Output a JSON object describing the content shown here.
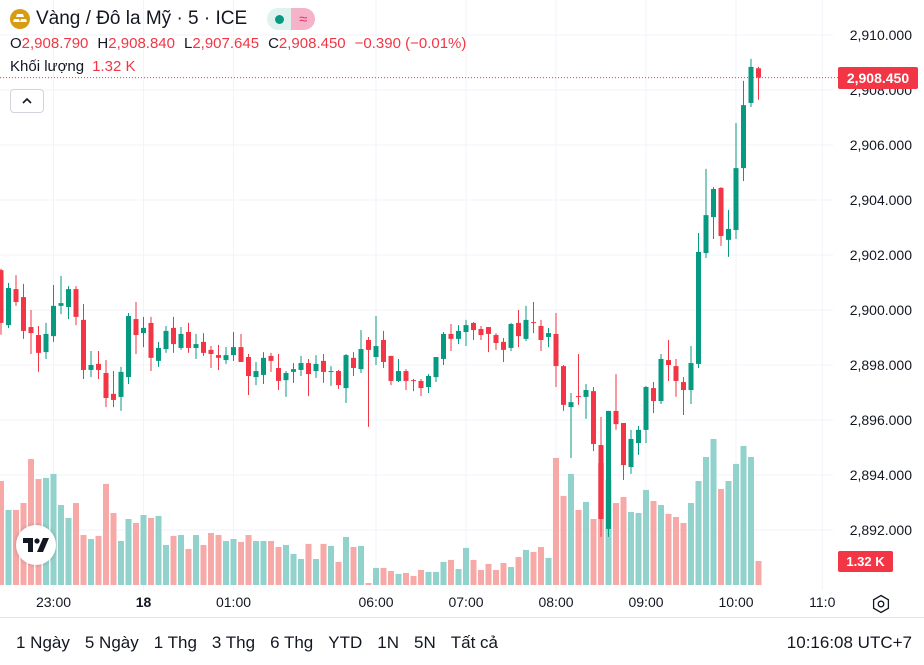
{
  "header": {
    "title": "Vàng / Đô la Mỹ · 5 · ICE",
    "market_status_icon": "green-dot-icon",
    "delayed_icon": "approx-icon",
    "delayed_glyph": "≈",
    "ohlc": {
      "o_label": "O",
      "o": "2,908.790",
      "h_label": "H",
      "h": "2,908.840",
      "l_label": "L",
      "l": "2,907.645",
      "c_label": "C",
      "c": "2,908.450",
      "change": "−0.390 (−0.01%)"
    },
    "volume_label": "Khối lượng",
    "volume_value": "1.32 K",
    "collapse_glyph": "⌃"
  },
  "price_axis": {
    "labels": [
      "2,910.000",
      "2,908.000",
      "2,906.000",
      "2,904.000",
      "2,902.000",
      "2,900.000",
      "2,898.000",
      "2,896.000",
      "2,894.000",
      "2,892.000"
    ],
    "last_price": "2,908.450",
    "last_volume": "1.32 K"
  },
  "time_axis": {
    "labels": [
      {
        "text": "23:00",
        "index": 7,
        "bold": false
      },
      {
        "text": "18",
        "index": 19,
        "bold": true
      },
      {
        "text": "01:00",
        "index": 31,
        "bold": false
      },
      {
        "text": "06:00",
        "index": 50,
        "bold": false
      },
      {
        "text": "07:00",
        "index": 62,
        "bold": false
      },
      {
        "text": "08:00",
        "index": 74,
        "bold": false
      },
      {
        "text": "09:00",
        "index": 86,
        "bold": false
      },
      {
        "text": "10:00",
        "index": 98,
        "bold": false
      },
      {
        "text": "11:0",
        "index": 109.5,
        "bold": false
      }
    ]
  },
  "footer": {
    "ranges": [
      "1 Ngày",
      "5 Ngày",
      "1 Thg",
      "3 Thg",
      "6 Thg",
      "YTD",
      "1N",
      "5N",
      "Tất cả"
    ],
    "clock": "10:16:08 UTC+7"
  },
  "colors": {
    "up": "#089981",
    "down": "#f23645",
    "vol_up": "#92d2cc",
    "vol_down": "#f7a9a7",
    "grid": "#f0f3fa"
  },
  "chart_data": {
    "type": "candlestick",
    "title": "Vàng / Đô la Mỹ · 5 · ICE",
    "interval_minutes": 5,
    "ylim": [
      2890.3,
      2911.2
    ],
    "yticks": [
      2910,
      2908,
      2906,
      2904,
      2902,
      2900,
      2898,
      2896,
      2894,
      2892
    ],
    "grid": true,
    "volume_unit": "K",
    "ohlc": [
      [
        2901.45,
        2901.5,
        2899.1,
        2899.53
      ],
      [
        2899.45,
        2900.98,
        2899.34,
        2900.8
      ],
      [
        2900.76,
        2901.27,
        2900.15,
        2900.29
      ],
      [
        2900.47,
        2900.95,
        2898.95,
        2899.24
      ],
      [
        2899.38,
        2900.0,
        2898.4,
        2899.16
      ],
      [
        2899.09,
        2899.42,
        2897.75,
        2898.44
      ],
      [
        2898.47,
        2899.53,
        2898.22,
        2899.13
      ],
      [
        2899.05,
        2900.91,
        2898.84,
        2900.15
      ],
      [
        2900.15,
        2901.24,
        2899.85,
        2900.25
      ],
      [
        2900.11,
        2900.87,
        2899.67,
        2900.76
      ],
      [
        2900.76,
        2900.87,
        2899.45,
        2899.75
      ],
      [
        2899.64,
        2900.22,
        2897.49,
        2897.82
      ],
      [
        2897.82,
        2898.51,
        2897.56,
        2898.0
      ],
      [
        2898.04,
        2898.51,
        2897.49,
        2897.82
      ],
      [
        2897.71,
        2898.18,
        2896.47,
        2896.8
      ],
      [
        2896.95,
        2897.78,
        2896.47,
        2896.73
      ],
      [
        2896.84,
        2897.93,
        2896.33,
        2897.75
      ],
      [
        2897.56,
        2899.89,
        2897.31,
        2899.78
      ],
      [
        2899.67,
        2900.29,
        2898.4,
        2899.09
      ],
      [
        2899.16,
        2899.75,
        2898.65,
        2899.35
      ],
      [
        2899.53,
        2899.75,
        2897.78,
        2898.26
      ],
      [
        2898.15,
        2898.84,
        2897.93,
        2898.62
      ],
      [
        2898.58,
        2899.42,
        2898.44,
        2899.24
      ],
      [
        2899.35,
        2899.75,
        2898.44,
        2898.76
      ],
      [
        2898.62,
        2899.38,
        2898.55,
        2899.13
      ],
      [
        2899.2,
        2899.53,
        2898.44,
        2898.62
      ],
      [
        2898.62,
        2899.13,
        2898.22,
        2898.76
      ],
      [
        2898.84,
        2899.16,
        2898.33,
        2898.44
      ],
      [
        2898.55,
        2898.69,
        2897.89,
        2898.4
      ],
      [
        2898.36,
        2898.73,
        2897.82,
        2898.26
      ],
      [
        2898.18,
        2898.65,
        2898.04,
        2898.36
      ],
      [
        2898.36,
        2899.2,
        2898.15,
        2898.65
      ],
      [
        2898.65,
        2899.13,
        2898.11,
        2898.11
      ],
      [
        2898.29,
        2898.4,
        2896.91,
        2897.6
      ],
      [
        2897.56,
        2898.11,
        2897.27,
        2897.78
      ],
      [
        2897.64,
        2898.47,
        2897.31,
        2898.26
      ],
      [
        2898.33,
        2898.44,
        2897.75,
        2898.15
      ],
      [
        2897.89,
        2898.4,
        2897.09,
        2897.42
      ],
      [
        2897.45,
        2897.78,
        2896.84,
        2897.71
      ],
      [
        2897.75,
        2898.07,
        2897.35,
        2897.85
      ],
      [
        2897.82,
        2898.33,
        2897.6,
        2898.07
      ],
      [
        2898.07,
        2898.22,
        2896.87,
        2897.67
      ],
      [
        2897.78,
        2898.36,
        2897.53,
        2898.04
      ],
      [
        2898.15,
        2898.4,
        2897.35,
        2897.75
      ],
      [
        2897.75,
        2897.96,
        2897.24,
        2897.78
      ],
      [
        2897.78,
        2897.82,
        2897.13,
        2897.27
      ],
      [
        2897.16,
        2898.4,
        2896.62,
        2898.36
      ],
      [
        2898.26,
        2898.47,
        2897.6,
        2897.89
      ],
      [
        2897.85,
        2899.27,
        2897.71,
        2898.58
      ],
      [
        2898.91,
        2899.02,
        2895.75,
        2898.55
      ],
      [
        2898.29,
        2899.78,
        2898.0,
        2898.69
      ],
      [
        2898.91,
        2899.24,
        2897.89,
        2898.11
      ],
      [
        2898.33,
        2898.33,
        2897.27,
        2897.42
      ],
      [
        2897.42,
        2898.22,
        2897.38,
        2897.78
      ],
      [
        2897.78,
        2897.85,
        2897.09,
        2897.42
      ],
      [
        2897.45,
        2897.49,
        2897.05,
        2897.42
      ],
      [
        2897.42,
        2897.49,
        2896.87,
        2897.16
      ],
      [
        2897.2,
        2897.67,
        2896.98,
        2897.6
      ],
      [
        2897.56,
        2898.29,
        2897.38,
        2898.29
      ],
      [
        2898.22,
        2899.2,
        2898.0,
        2899.13
      ],
      [
        2899.13,
        2899.49,
        2898.51,
        2898.95
      ],
      [
        2898.95,
        2899.45,
        2898.76,
        2899.24
      ],
      [
        2899.2,
        2899.64,
        2898.69,
        2899.45
      ],
      [
        2899.53,
        2899.56,
        2898.91,
        2899.27
      ],
      [
        2899.31,
        2899.42,
        2898.91,
        2899.09
      ],
      [
        2899.38,
        2899.38,
        2898.47,
        2899.13
      ],
      [
        2899.09,
        2899.16,
        2898.55,
        2898.8
      ],
      [
        2898.84,
        2898.98,
        2898.11,
        2898.55
      ],
      [
        2898.62,
        2899.53,
        2898.51,
        2899.49
      ],
      [
        2899.53,
        2900.0,
        2898.65,
        2899.05
      ],
      [
        2898.95,
        2900.15,
        2898.87,
        2899.64
      ],
      [
        2899.56,
        2900.29,
        2899.16,
        2899.53
      ],
      [
        2899.42,
        2899.64,
        2898.51,
        2898.91
      ],
      [
        2899.02,
        2899.35,
        2898.65,
        2899.16
      ],
      [
        2899.13,
        2899.89,
        2897.2,
        2897.96
      ],
      [
        2897.96,
        2898.0,
        2896.33,
        2896.55
      ],
      [
        2896.47,
        2896.98,
        2894.62,
        2896.65
      ],
      [
        2896.87,
        2898.4,
        2896.55,
        2896.84
      ],
      [
        2896.84,
        2897.31,
        2896.04,
        2897.09
      ],
      [
        2897.05,
        2897.2,
        2894.87,
        2895.13
      ],
      [
        2895.09,
        2896.11,
        2891.75,
        2892.4
      ],
      [
        2892.04,
        2896.33,
        2891.75,
        2896.33
      ],
      [
        2896.33,
        2897.67,
        2895.64,
        2895.85
      ],
      [
        2895.89,
        2895.89,
        2893.82,
        2894.36
      ],
      [
        2894.29,
        2895.64,
        2894.04,
        2895.31
      ],
      [
        2895.16,
        2895.78,
        2894.73,
        2895.64
      ],
      [
        2895.64,
        2897.24,
        2895.16,
        2897.2
      ],
      [
        2897.16,
        2897.38,
        2896.25,
        2896.69
      ],
      [
        2896.69,
        2898.4,
        2896.58,
        2898.22
      ],
      [
        2898.18,
        2898.91,
        2897.42,
        2898.0
      ],
      [
        2897.96,
        2898.22,
        2896.84,
        2897.42
      ],
      [
        2897.38,
        2897.56,
        2896.18,
        2897.09
      ],
      [
        2897.09,
        2898.69,
        2896.58,
        2898.07
      ],
      [
        2898.04,
        2902.8,
        2897.89,
        2902.11
      ],
      [
        2902.07,
        2905.13,
        2901.89,
        2903.45
      ],
      [
        2903.38,
        2904.47,
        2902.58,
        2904.4
      ],
      [
        2904.44,
        2904.47,
        2902.33,
        2902.69
      ],
      [
        2902.55,
        2903.64,
        2901.93,
        2902.95
      ],
      [
        2902.91,
        2906.8,
        2902.58,
        2905.16
      ],
      [
        2905.16,
        2908.33,
        2904.69,
        2907.45
      ],
      [
        2907.53,
        2909.13,
        2907.38,
        2908.84
      ],
      [
        2908.79,
        2908.84,
        2907.645,
        2908.45
      ]
    ],
    "volume": [
      5.72,
      4.13,
      4.13,
      4.51,
      6.93,
      5.83,
      5.89,
      6.11,
      4.4,
      3.69,
      4.51,
      2.75,
      2.53,
      2.7,
      5.56,
      3.96,
      2.42,
      3.63,
      3.41,
      3.85,
      3.69,
      3.8,
      2.2,
      2.7,
      2.75,
      1.98,
      2.75,
      2.2,
      2.86,
      2.75,
      2.42,
      2.53,
      2.37,
      2.75,
      2.42,
      2.42,
      2.42,
      2.09,
      2.2,
      1.71,
      1.43,
      2.26,
      1.43,
      2.26,
      2.15,
      1.27,
      2.64,
      2.09,
      2.15,
      0.11,
      0.94,
      0.94,
      0.77,
      0.61,
      0.66,
      0.5,
      0.83,
      0.72,
      0.72,
      1.27,
      1.38,
      0.88,
      2.04,
      1.38,
      0.83,
      1.16,
      0.83,
      1.21,
      0.99,
      1.54,
      1.93,
      1.82,
      2.09,
      1.49,
      6.99,
      4.9,
      6.11,
      4.13,
      4.57,
      3.63,
      6.71,
      5.78,
      4.51,
      4.84,
      4.02,
      3.96,
      5.23,
      4.62,
      4.4,
      3.91,
      3.74,
      3.41,
      4.51,
      5.72,
      7.04,
      8.03,
      5.28,
      5.72,
      6.66,
      7.65,
      7.04,
      1.32
    ],
    "last_price": 2908.45
  }
}
